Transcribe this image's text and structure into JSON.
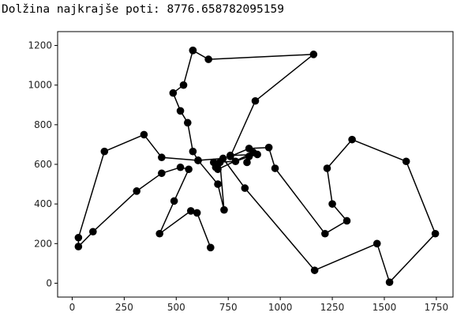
{
  "title": "Dolžina najkrajše poti: 8776.658782095159",
  "chart_data": {
    "type": "line",
    "series": [
      {
        "color": "#000000",
        "marker": "circle",
        "points": [
          [
            580,
            1175
          ],
          [
            655,
            1130
          ],
          [
            1160,
            1155
          ],
          [
            880,
            920
          ],
          [
            760,
            640
          ],
          [
            850,
            680
          ],
          [
            945,
            685
          ],
          [
            975,
            580
          ],
          [
            1215,
            250
          ],
          [
            1320,
            315
          ],
          [
            1250,
            400
          ],
          [
            1225,
            580
          ],
          [
            1345,
            725
          ],
          [
            1605,
            615
          ],
          [
            1745,
            250
          ],
          [
            1525,
            5
          ],
          [
            1465,
            200
          ],
          [
            1165,
            65
          ],
          [
            830,
            480
          ],
          [
            725,
            630
          ],
          [
            605,
            620
          ],
          [
            580,
            665
          ],
          [
            555,
            810
          ],
          [
            520,
            870
          ],
          [
            485,
            960
          ],
          [
            535,
            1000
          ],
          [
            580,
            1175
          ]
        ]
      },
      {
        "color": "#000000",
        "marker": "circle",
        "points": [
          [
            840,
            610
          ],
          [
            870,
            660
          ],
          [
            700,
            575
          ],
          [
            680,
            610
          ],
          [
            785,
            615
          ],
          [
            850,
            640
          ],
          [
            890,
            650
          ],
          [
            760,
            645
          ]
        ]
      },
      {
        "color": "#000000",
        "marker": "circle",
        "points": [
          [
            605,
            620
          ],
          [
            700,
            500
          ],
          [
            730,
            370
          ],
          [
            710,
            610
          ],
          [
            690,
            585
          ]
        ]
      },
      {
        "color": "#000000",
        "marker": "circle",
        "points": [
          [
            605,
            620
          ],
          [
            430,
            635
          ],
          [
            345,
            750
          ],
          [
            155,
            665
          ],
          [
            30,
            230
          ],
          [
            30,
            185
          ],
          [
            100,
            260
          ],
          [
            310,
            465
          ],
          [
            430,
            555
          ],
          [
            520,
            585
          ],
          [
            560,
            575
          ],
          [
            490,
            415
          ],
          [
            420,
            250
          ],
          [
            570,
            365
          ],
          [
            600,
            355
          ],
          [
            665,
            180
          ]
        ]
      }
    ],
    "xlim": [
      -70,
      1830
    ],
    "ylim": [
      -70,
      1270
    ],
    "xticks": [
      0,
      250,
      500,
      750,
      1000,
      1250,
      1500,
      1750
    ],
    "yticks": [
      0,
      200,
      400,
      600,
      800,
      1000,
      1200
    ],
    "xlabel": "",
    "ylabel": "",
    "grid": false,
    "legend": "none"
  }
}
